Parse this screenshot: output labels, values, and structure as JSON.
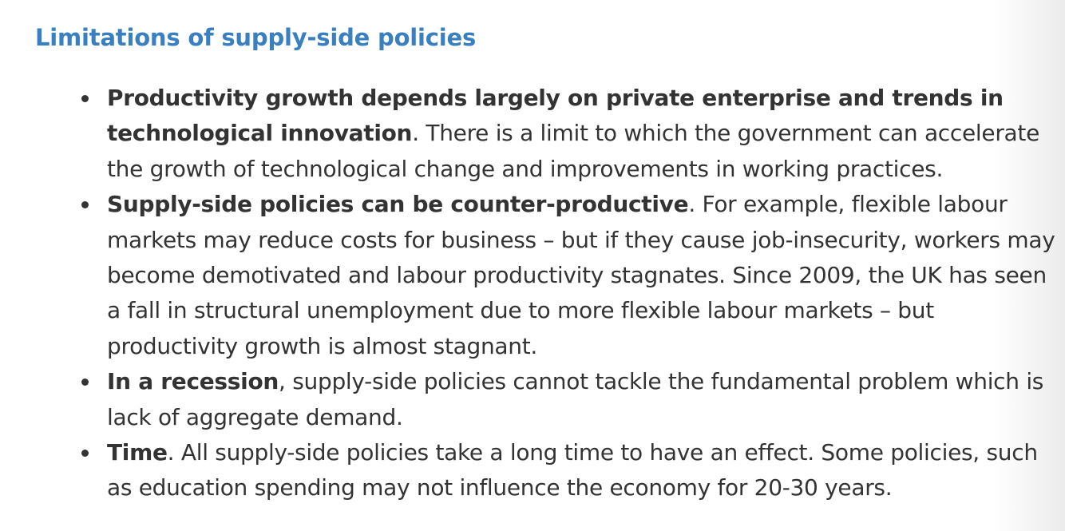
{
  "heading": "Limitations of supply-side policies",
  "items": [
    {
      "bold": "Productivity growth depends largely on private enterprise and trends in technological innovation",
      "text": ". There is a limit to which the government can accelerate the growth of technological change and improvements in working practices."
    },
    {
      "bold": "Supply-side policies can be counter-productive",
      "text": ". For example, flexible labour markets may reduce costs for business – but if they cause job-insecurity, workers may become demotivated and labour productivity stagnates. Since 2009, the UK has seen a fall in structural unemployment due to more flexible labour markets – but productivity growth is almost stagnant."
    },
    {
      "bold": "In a recession",
      "text": ", supply-side policies cannot tackle the fundamental problem which is lack of aggregate demand."
    },
    {
      "bold": "Time",
      "text": ". All supply-side policies take a long time to have an effect. Some policies, such as education spending may not influence the economy for 20-30 years."
    }
  ]
}
